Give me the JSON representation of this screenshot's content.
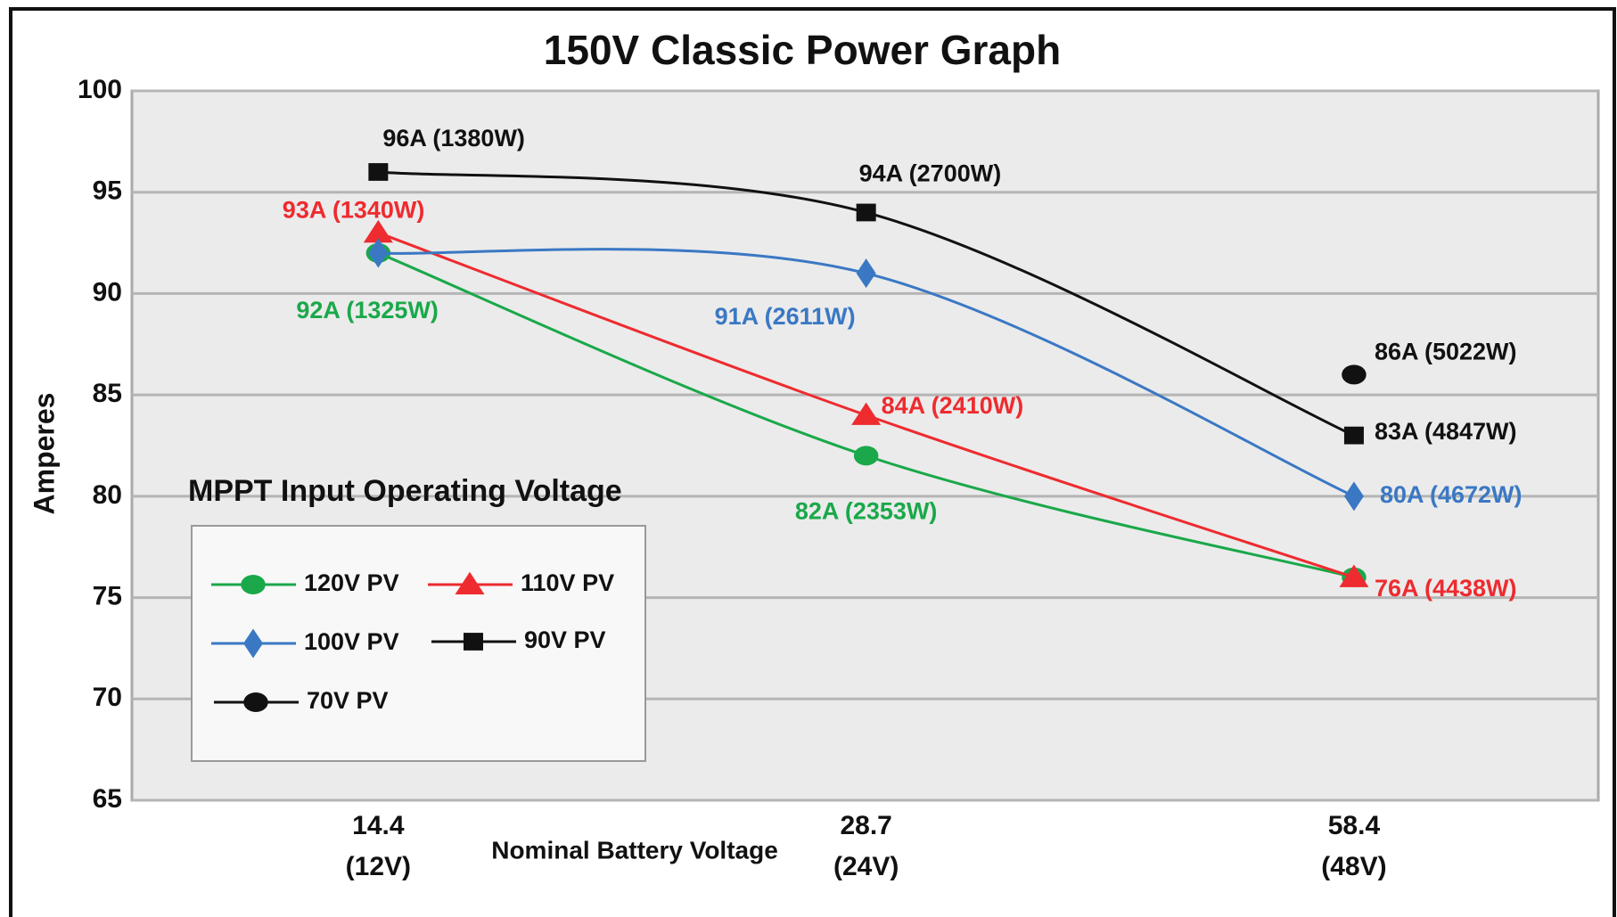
{
  "chart_data": {
    "type": "line",
    "title": "150V Classic Power Graph",
    "y_label": "Amperes",
    "x_label": "Nominal Battery Voltage",
    "legend_title": "MPPT Input Operating Voltage",
    "categories": [
      "14.4",
      "28.7",
      "58.4"
    ],
    "category_sublabels": [
      "(12V)",
      "(24V)",
      "(48V)"
    ],
    "ylim": [
      65,
      100
    ],
    "yticks": [
      65,
      70,
      75,
      80,
      85,
      90,
      95,
      100
    ],
    "grid": true,
    "series": [
      {
        "name": "120V PV",
        "color": "#1aa84a",
        "marker": "circle",
        "values": [
          92,
          82,
          76
        ],
        "value_labels": [
          "92A (1325W)",
          "82A (2353W)",
          null
        ]
      },
      {
        "name": "110V PV",
        "color": "#ee2b2f",
        "marker": "triangle",
        "values": [
          93,
          84,
          76
        ],
        "value_labels": [
          "93A (1340W)",
          "84A (2410W)",
          "76A (4438W)"
        ]
      },
      {
        "name": "100V PV",
        "color": "#3a78c4",
        "marker": "diamond",
        "values": [
          92,
          91,
          80
        ],
        "value_labels": [
          null,
          "91A (2611W)",
          "80A (4672W)"
        ]
      },
      {
        "name": "90V PV",
        "color": "#111111",
        "marker": "square",
        "values": [
          96,
          94,
          83
        ],
        "value_labels": [
          "96A (1380W)",
          "94A (2700W)",
          "83A (4847W)"
        ]
      },
      {
        "name": "70V PV",
        "color": "#111111",
        "marker": "circle",
        "values": [
          null,
          null,
          86
        ],
        "value_labels": [
          null,
          null,
          "86A (5022W)"
        ]
      }
    ]
  }
}
